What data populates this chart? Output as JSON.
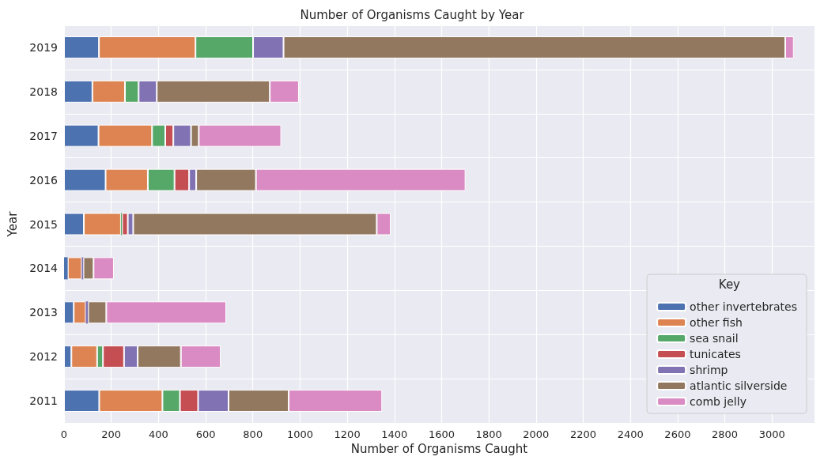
{
  "chart_data": {
    "type": "bar",
    "orientation": "horizontal",
    "stacked": true,
    "title": "Number of Organisms Caught by Year",
    "xlabel": "Number of Organisms Caught",
    "ylabel": "Year",
    "legend_title": "Key",
    "legend": "bottom right",
    "grid": true,
    "categories": [
      "2019",
      "2018",
      "2017",
      "2016",
      "2015",
      "2014",
      "2013",
      "2012",
      "2011"
    ],
    "xlim": [
      0,
      3180
    ],
    "xticks": [
      0,
      200,
      400,
      600,
      800,
      1000,
      1200,
      1400,
      1600,
      1800,
      2000,
      2200,
      2400,
      2600,
      2800,
      3000
    ],
    "series": [
      {
        "name": "other invertebrates",
        "color": "#4c72b0",
        "values": [
          148,
          120,
          146,
          176,
          84,
          16,
          41,
          31,
          149
        ]
      },
      {
        "name": "other fish",
        "color": "#dd8452",
        "values": [
          409,
          138,
          227,
          179,
          157,
          59,
          51,
          109,
          268
        ]
      },
      {
        "name": "sea snail",
        "color": "#55a868",
        "values": [
          244,
          58,
          56,
          113,
          5,
          0,
          0,
          25,
          74
        ]
      },
      {
        "name": "tunicates",
        "color": "#c44e52",
        "values": [
          0,
          0,
          34,
          62,
          24,
          0,
          0,
          89,
          77
        ]
      },
      {
        "name": "shrimp",
        "color": "#8172b3",
        "values": [
          129,
          77,
          75,
          30,
          23,
          7,
          10,
          58,
          129
        ]
      },
      {
        "name": "atlantic silverside",
        "color": "#937860",
        "values": [
          2126,
          479,
          33,
          253,
          1032,
          43,
          77,
          183,
          255
        ]
      },
      {
        "name": "comb jelly",
        "color": "#da8bc3",
        "values": [
          36,
          123,
          349,
          888,
          59,
          86,
          508,
          169,
          396
        ]
      }
    ]
  }
}
